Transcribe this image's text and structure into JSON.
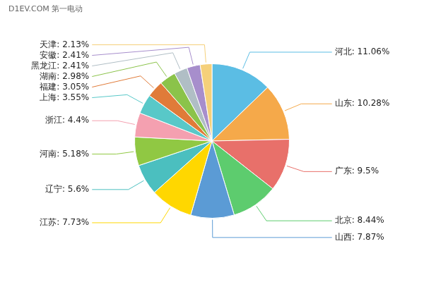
{
  "chart_data": {
    "type": "pie",
    "categories": [
      "河北",
      "山东",
      "广东",
      "北京",
      "山西",
      "江苏",
      "辽宁",
      "河南",
      "浙江",
      "上海",
      "福建",
      "湖南",
      "黑龙江",
      "安徽",
      "天津"
    ],
    "values": [
      11.06,
      10.28,
      9.5,
      8.44,
      7.87,
      7.73,
      5.6,
      5.18,
      4.4,
      3.55,
      3.05,
      2.98,
      2.41,
      2.41,
      2.13
    ],
    "value_labels": [
      "河北: 11.06%",
      "山东: 10.28%",
      "广东: 9.5%",
      "北京: 8.44%",
      "山西: 7.87%",
      "江苏: 7.73%",
      "辽宁: 5.6%",
      "河南: 5.18%",
      "浙江: 4.4%",
      "上海: 3.55%",
      "福建: 3.05%",
      "湖南: 2.98%",
      "黑龙江: 2.41%",
      "安徽: 2.41%",
      "天津: 2.13%"
    ],
    "colors": [
      "#5BBDE4",
      "#F5A94A",
      "#E8706A",
      "#5DCC6E",
      "#5B9BD5",
      "#FFD700",
      "#4BBFBF",
      "#90C843",
      "#F4A0B0",
      "#58C8C8",
      "#E07B39",
      "#8BC34A",
      "#B0BEC5",
      "#A78ECC",
      "#F5D07A"
    ],
    "data_labels": true,
    "annotations": [
      "D1EV.COM 第一电动"
    ]
  }
}
